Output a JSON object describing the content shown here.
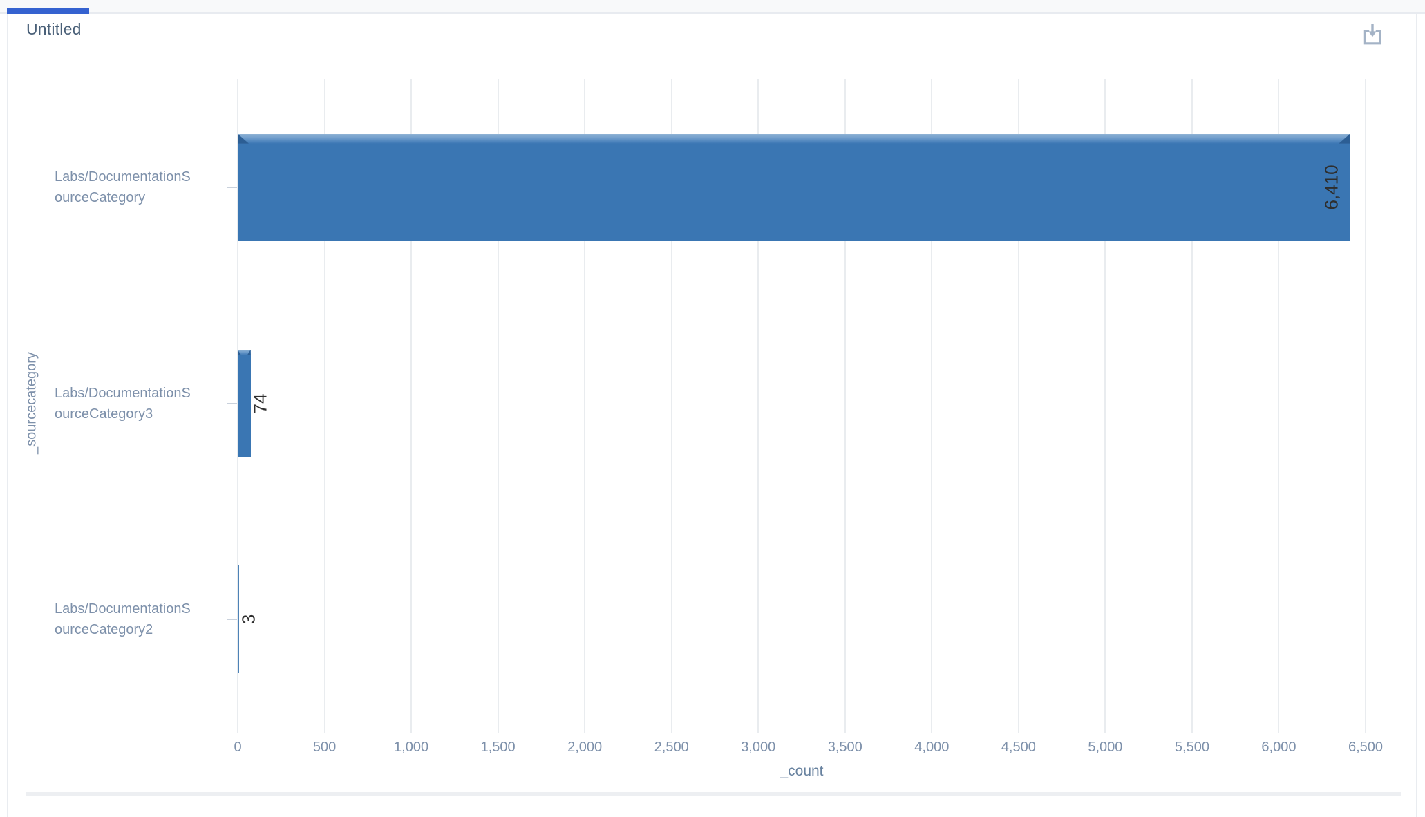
{
  "panel": {
    "title": "Untitled"
  },
  "toolbar": {
    "download_icon": "tray-arrow-down"
  },
  "chart_data": {
    "type": "bar",
    "orientation": "horizontal",
    "title": "Untitled",
    "categories": [
      "Labs/DocumentationSourceCategory",
      "Labs/DocumentationSourceCategory3",
      "Labs/DocumentationSourceCategory2"
    ],
    "category_lines": [
      [
        "Labs/DocumentationS",
        "ourceCategory"
      ],
      [
        "Labs/DocumentationS",
        "ourceCategory3"
      ],
      [
        "Labs/DocumentationS",
        "ourceCategory2"
      ]
    ],
    "values": [
      6410,
      74,
      3
    ],
    "value_labels": [
      "6,410",
      "74",
      "3"
    ],
    "xlabel": "_count",
    "ylabel": "_sourcecategory",
    "xlim": [
      0,
      6500
    ],
    "xtick_step": 500,
    "xtick_labels": [
      "0",
      "500",
      "1,000",
      "1,500",
      "2,000",
      "2,500",
      "3,000",
      "3,500",
      "4,000",
      "4,500",
      "5,000",
      "5,500",
      "6,000",
      "6,500"
    ],
    "grid": true,
    "legend": false
  },
  "theme": {
    "bar_color": "#3a76b3",
    "bar_bevel_dark": "#2c5e94",
    "bar_thin_color": "#4d82b6",
    "accent_tab": "#3562d0",
    "axis_text": "#7d90aa",
    "title_text": "#4a6078",
    "gridline": "#e9ecef",
    "value_text": "#2e2e2e",
    "icon_color": "#a4b3c6"
  }
}
